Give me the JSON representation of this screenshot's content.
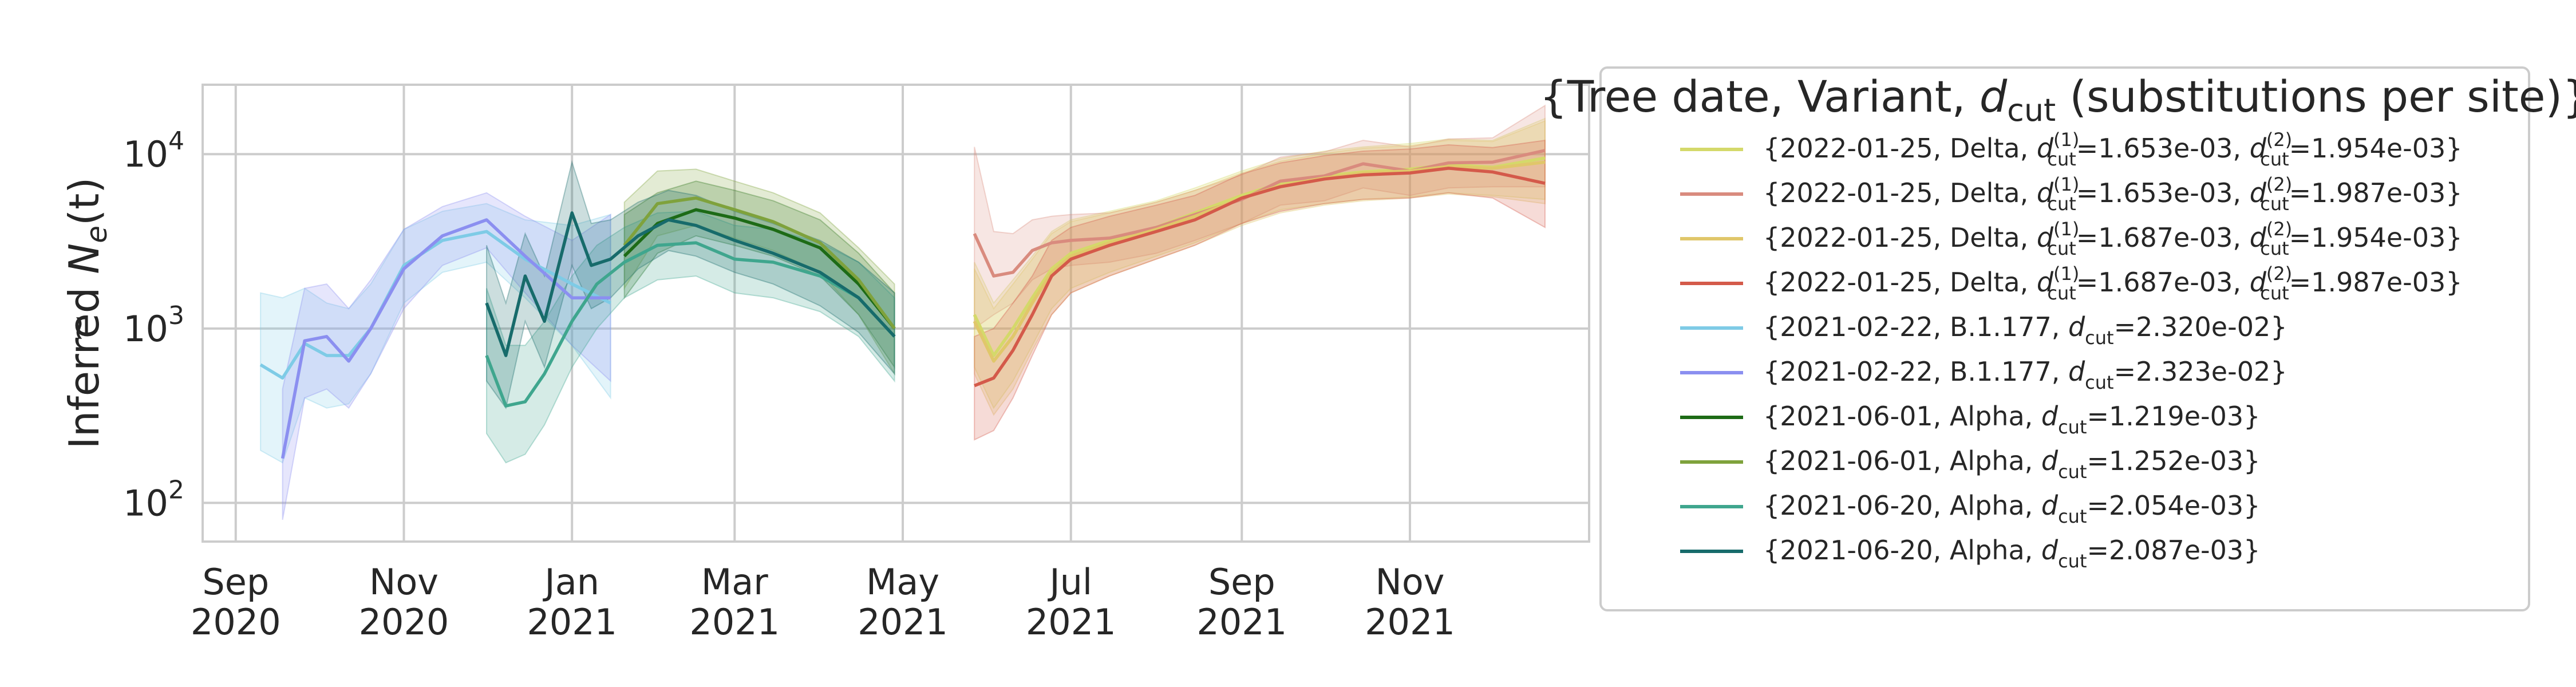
{
  "chart_data": {
    "type": "line",
    "title": "",
    "ylabel_parts": {
      "prefix": "Inferred ",
      "symbol": "N",
      "sub": "e",
      "suffix": "(t)"
    },
    "xlabel": "",
    "yscale": "log",
    "ylim": [
      60,
      25000
    ],
    "xlim": [
      "2020-08-20",
      "2022-01-05"
    ],
    "grid": true,
    "legend_placement": "outside-right",
    "y_ticks": [
      {
        "value": 100,
        "base": "10",
        "exp": "2"
      },
      {
        "value": 1000,
        "base": "10",
        "exp": "3"
      },
      {
        "value": 10000,
        "base": "10",
        "exp": "4"
      }
    ],
    "x_ticks": [
      {
        "date": "2020-09-01",
        "month": "Sep",
        "year": "2020"
      },
      {
        "date": "2020-11-01",
        "month": "Nov",
        "year": "2020"
      },
      {
        "date": "2021-01-01",
        "month": "Jan",
        "year": "2021"
      },
      {
        "date": "2021-03-01",
        "month": "Mar",
        "year": "2021"
      },
      {
        "date": "2021-05-01",
        "month": "May",
        "year": "2021"
      },
      {
        "date": "2021-07-01",
        "month": "Jul",
        "year": "2021"
      },
      {
        "date": "2021-09-01",
        "month": "Sep",
        "year": "2021"
      },
      {
        "date": "2021-11-01",
        "month": "Nov",
        "year": "2021"
      }
    ],
    "legend_title": {
      "prefix": "{Tree date, Variant, ",
      "sym": "d",
      "sub": "cut",
      "suffix": " (substitutions per site)}"
    },
    "series": [
      {
        "color": "#d4d96a",
        "label": {
          "date": "2022-01-25",
          "variant": "Delta",
          "d1": "1.653e-03",
          "d2": "1.954e-03"
        },
        "x": [
          "2021-05-27",
          "2021-06-03",
          "2021-06-10",
          "2021-06-17",
          "2021-06-24",
          "2021-07-01",
          "2021-07-15",
          "2021-08-01",
          "2021-08-15",
          "2021-09-01",
          "2021-09-15",
          "2021-10-01",
          "2021-10-15",
          "2021-11-01",
          "2021-11-15",
          "2021-12-01",
          "2021-12-20"
        ],
        "y": [
          1200,
          700,
          1000,
          1500,
          2200,
          2700,
          3200,
          3800,
          4600,
          5800,
          6800,
          7500,
          7900,
          8200,
          8700,
          8400,
          9500
        ],
        "lo": [
          600,
          350,
          500,
          800,
          1300,
          1700,
          2100,
          2600,
          3100,
          4000,
          4800,
          5200,
          5500,
          5700,
          6000,
          5800,
          5500
        ],
        "hi": [
          2400,
          1400,
          1900,
          2600,
          3600,
          4200,
          4700,
          5400,
          6400,
          8000,
          9400,
          10400,
          11000,
          11500,
          12200,
          12000,
          16000
        ]
      },
      {
        "color": "#d98b7e",
        "label": {
          "date": "2022-01-25",
          "variant": "Delta",
          "d1": "1.653e-03",
          "d2": "1.987e-03"
        },
        "x": [
          "2021-05-27",
          "2021-06-03",
          "2021-06-10",
          "2021-06-17",
          "2021-06-24",
          "2021-07-01",
          "2021-07-15",
          "2021-08-01",
          "2021-08-15",
          "2021-09-01",
          "2021-09-15",
          "2021-10-01",
          "2021-10-15",
          "2021-11-01",
          "2021-11-15",
          "2021-12-01",
          "2021-12-20"
        ],
        "y": [
          3500,
          2000,
          2100,
          2800,
          3100,
          3200,
          3300,
          3800,
          4500,
          5500,
          7000,
          7500,
          8800,
          8000,
          8900,
          9000,
          10500
        ],
        "lo": [
          1000,
          1200,
          1400,
          1900,
          2200,
          2300,
          2400,
          2700,
          3200,
          4000,
          5100,
          5400,
          6400,
          5800,
          6400,
          6500,
          6500
        ],
        "hi": [
          11000,
          3600,
          3500,
          4200,
          4400,
          4500,
          4600,
          5300,
          6200,
          7600,
          9600,
          10300,
          12000,
          11000,
          12200,
          12400,
          19000
        ]
      },
      {
        "color": "#e0c76a",
        "label": {
          "date": "2022-01-25",
          "variant": "Delta",
          "d1": "1.687e-03",
          "d2": "1.954e-03"
        },
        "x": [
          "2021-05-27",
          "2021-06-03",
          "2021-06-10",
          "2021-06-17",
          "2021-06-24",
          "2021-07-01",
          "2021-07-15",
          "2021-08-01",
          "2021-08-15",
          "2021-09-01",
          "2021-09-15",
          "2021-10-01",
          "2021-10-15",
          "2021-11-01",
          "2021-11-15",
          "2021-12-01",
          "2021-12-20"
        ],
        "y": [
          1100,
          650,
          900,
          1400,
          2100,
          2600,
          3100,
          3700,
          4400,
          5600,
          6600,
          7300,
          7800,
          8000,
          8500,
          8300,
          9000
        ],
        "lo": [
          550,
          320,
          450,
          750,
          1200,
          1600,
          2000,
          2500,
          3000,
          3900,
          4600,
          5100,
          5400,
          5600,
          5900,
          5700,
          5200
        ],
        "hi": [
          2200,
          1300,
          1800,
          2500,
          3500,
          4100,
          4600,
          5300,
          6200,
          7800,
          9100,
          10100,
          10800,
          11200,
          12000,
          11800,
          15500
        ]
      },
      {
        "color": "#d45a4a",
        "label": {
          "date": "2022-01-25",
          "variant": "Delta",
          "d1": "1.687e-03",
          "d2": "1.987e-03"
        },
        "x": [
          "2021-05-27",
          "2021-06-03",
          "2021-06-10",
          "2021-06-17",
          "2021-06-24",
          "2021-07-01",
          "2021-07-15",
          "2021-08-01",
          "2021-08-15",
          "2021-09-01",
          "2021-09-15",
          "2021-10-01",
          "2021-10-15",
          "2021-11-01",
          "2021-11-15",
          "2021-12-01",
          "2021-12-20"
        ],
        "y": [
          470,
          520,
          750,
          1200,
          2000,
          2500,
          3000,
          3600,
          4200,
          5600,
          6500,
          7200,
          7600,
          7800,
          8300,
          7900,
          6800
        ],
        "lo": [
          230,
          260,
          400,
          700,
          1200,
          1600,
          2000,
          2500,
          3000,
          4000,
          4700,
          5200,
          5500,
          5600,
          6000,
          5600,
          3800
        ],
        "hi": [
          900,
          1000,
          1400,
          2000,
          3200,
          3800,
          4400,
          5100,
          5800,
          7700,
          8900,
          9800,
          10400,
          10700,
          11300,
          10900,
          12000
        ]
      },
      {
        "color": "#7ecbe6",
        "label": {
          "date": "2021-02-22",
          "variant": "B.1.177",
          "d": "2.320e-02"
        },
        "x": [
          "2020-09-10",
          "2020-09-18",
          "2020-09-26",
          "2020-10-04",
          "2020-10-12",
          "2020-10-20",
          "2020-11-01",
          "2020-11-15",
          "2020-12-01",
          "2020-12-15",
          "2021-01-01",
          "2021-01-15"
        ],
        "y": [
          620,
          520,
          820,
          700,
          700,
          1000,
          2300,
          3200,
          3600,
          2500,
          1800,
          1400
        ],
        "lo": [
          200,
          170,
          400,
          350,
          370,
          550,
          1400,
          2100,
          2400,
          1500,
          800,
          400
        ],
        "hi": [
          1600,
          1500,
          1700,
          1400,
          1300,
          1800,
          3700,
          4700,
          5200,
          4200,
          3900,
          4500
        ]
      },
      {
        "color": "#8b8ff0",
        "label": {
          "date": "2021-02-22",
          "variant": "B.1.177",
          "d": "2.323e-02"
        },
        "x": [
          "2020-09-18",
          "2020-09-26",
          "2020-10-04",
          "2020-10-12",
          "2020-10-20",
          "2020-11-01",
          "2020-11-15",
          "2020-12-01",
          "2020-12-15",
          "2021-01-01",
          "2021-01-15"
        ],
        "y": [
          180,
          850,
          900,
          650,
          1000,
          2200,
          3400,
          4200,
          2600,
          1500,
          1500
        ],
        "lo": [
          80,
          400,
          450,
          350,
          550,
          1300,
          2300,
          2900,
          1600,
          800,
          500
        ],
        "hi": [
          450,
          1700,
          1800,
          1300,
          1900,
          3700,
          5000,
          6000,
          4400,
          3200,
          4500
        ]
      },
      {
        "color": "#1d6b16",
        "label": {
          "date": "2021-06-01",
          "variant": "Alpha",
          "d": "1.219e-03"
        },
        "x": [
          "2021-01-20",
          "2021-02-01",
          "2021-02-15",
          "2021-03-01",
          "2021-03-15",
          "2021-04-01",
          "2021-04-15",
          "2021-04-28"
        ],
        "y": [
          2600,
          4000,
          4800,
          4300,
          3700,
          2900,
          1800,
          1000
        ],
        "lo": [
          1500,
          2700,
          3400,
          3000,
          2600,
          2000,
          1200,
          600
        ],
        "hi": [
          4500,
          6000,
          7000,
          6200,
          5400,
          4200,
          2700,
          1600
        ]
      },
      {
        "color": "#7fa23c",
        "label": {
          "date": "2021-06-01",
          "variant": "Alpha",
          "d": "1.252e-03"
        },
        "x": [
          "2021-01-20",
          "2021-02-01",
          "2021-02-15",
          "2021-03-01",
          "2021-03-15",
          "2021-04-01",
          "2021-04-15",
          "2021-04-28"
        ],
        "y": [
          3000,
          5200,
          5600,
          4800,
          4100,
          3100,
          1900,
          1000
        ],
        "lo": [
          1700,
          3400,
          3900,
          3300,
          2800,
          2100,
          1200,
          550
        ],
        "hi": [
          5300,
          8000,
          8200,
          7000,
          6000,
          4600,
          2900,
          1800
        ]
      },
      {
        "color": "#3fa68e",
        "label": {
          "date": "2021-06-20",
          "variant": "Alpha",
          "d": "2.054e-03"
        },
        "x": [
          "2020-12-01",
          "2020-12-08",
          "2020-12-15",
          "2020-12-22",
          "2021-01-01",
          "2021-01-10",
          "2021-01-20",
          "2021-02-01",
          "2021-02-15",
          "2021-03-01",
          "2021-03-15",
          "2021-04-01",
          "2021-04-15",
          "2021-04-28"
        ],
        "y": [
          700,
          360,
          380,
          550,
          1100,
          1800,
          2400,
          3000,
          3100,
          2500,
          2400,
          2000,
          1500,
          900
        ],
        "lo": [
          250,
          170,
          190,
          280,
          600,
          1000,
          1500,
          1900,
          2000,
          1600,
          1500,
          1250,
          900,
          500
        ],
        "hi": [
          1700,
          800,
          800,
          1100,
          2000,
          3000,
          3800,
          4600,
          4700,
          3900,
          3700,
          3100,
          2400,
          1500
        ]
      },
      {
        "color": "#176b6b",
        "label": {
          "date": "2021-06-20",
          "variant": "Alpha",
          "d": "2.087e-03"
        },
        "x": [
          "2020-12-01",
          "2020-12-08",
          "2020-12-15",
          "2020-12-22",
          "2021-01-01",
          "2021-01-08",
          "2021-01-15",
          "2021-01-25",
          "2021-02-05",
          "2021-02-15",
          "2021-03-01",
          "2021-03-15",
          "2021-04-01",
          "2021-04-15",
          "2021-04-28"
        ],
        "y": [
          1400,
          700,
          2000,
          1100,
          4600,
          2300,
          2500,
          3400,
          4200,
          3900,
          3200,
          2700,
          2100,
          1500,
          900
        ],
        "lo": [
          500,
          350,
          1100,
          600,
          2300,
          1300,
          1500,
          2200,
          2800,
          2600,
          2100,
          1800,
          1350,
          950,
          550
        ],
        "hi": [
          3000,
          1400,
          3500,
          2000,
          9000,
          4000,
          4200,
          5300,
          6200,
          5800,
          4700,
          4000,
          3200,
          2400,
          1600
        ]
      }
    ]
  }
}
